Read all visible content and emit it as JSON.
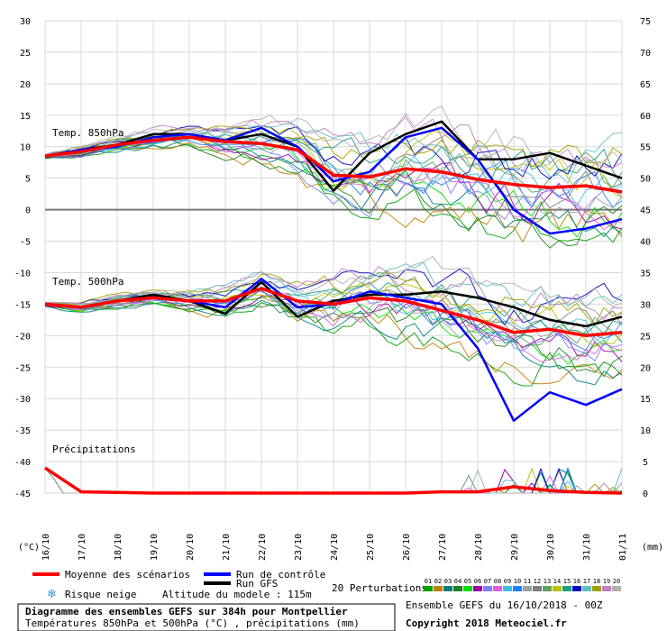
{
  "chart_data": {
    "type": "line",
    "title": "Diagramme des ensembles GEFS sur 384h pour Montpellier",
    "subtitle": "Températures 850hPa et 500hPa (°C) , précipitations (mm)",
    "left_axis_label": "(°C)",
    "right_axis_label": "(mm)",
    "left_ticks": [
      30,
      25,
      20,
      15,
      10,
      5,
      0,
      -5,
      -10,
      -15,
      -20,
      -25,
      -30,
      -35,
      -40,
      -45
    ],
    "right_ticks": [
      75,
      70,
      65,
      60,
      55,
      50,
      45,
      40,
      35,
      30,
      25,
      20,
      15,
      10,
      5,
      0
    ],
    "ylim": [
      -45,
      30
    ],
    "x_dates": [
      "16/10",
      "17/10",
      "18/10",
      "19/10",
      "20/10",
      "21/10",
      "22/10",
      "23/10",
      "24/10",
      "25/10",
      "26/10",
      "27/10",
      "28/10",
      "29/10",
      "30/10",
      "31/10",
      "01/11"
    ],
    "panel_labels": {
      "t850": "Temp. 850hPa",
      "t500": "Temp. 500hPa",
      "precip": "Précipitations"
    },
    "series": [
      {
        "key": "t850_mean",
        "name": "Moyenne des scénarios",
        "color": "#ff0000",
        "values": [
          8.5,
          9.2,
          10.3,
          11.0,
          11.5,
          10.8,
          10.5,
          9.5,
          5.5,
          5.2,
          6.5,
          6.0,
          4.8,
          4.0,
          3.5,
          3.8,
          2.8
        ]
      },
      {
        "key": "t850_control",
        "name": "Run de contrôle",
        "color": "#0000ff",
        "values": [
          8.5,
          9.5,
          10.0,
          11.5,
          12.0,
          11.0,
          13.0,
          10.0,
          4.5,
          6.0,
          11.5,
          13.0,
          8.0,
          0.0,
          -3.8,
          -3.0,
          -1.5
        ]
      },
      {
        "key": "t850_gfs",
        "name": "Run GFS",
        "color": "#000000",
        "values": [
          8.5,
          9.5,
          10.3,
          12.0,
          12.0,
          11.0,
          12.0,
          10.0,
          3.0,
          9.0,
          12.0,
          14.0,
          8.0,
          8.0,
          9.0,
          7.0,
          5.0
        ]
      },
      {
        "key": "t500_mean",
        "name": "Moyenne des scénarios",
        "color": "#ff0000",
        "values": [
          -15,
          -15.5,
          -14.5,
          -14.0,
          -14.5,
          -14.5,
          -12.5,
          -14.5,
          -15.0,
          -14.0,
          -14.5,
          -16.0,
          -17.5,
          -19.5,
          -19.0,
          -20.0,
          -19.5
        ]
      },
      {
        "key": "t500_control",
        "name": "Run de contrôle",
        "color": "#0000ff",
        "values": [
          -15,
          -15.5,
          -14.5,
          -14.0,
          -14.5,
          -15.5,
          -11.0,
          -15.5,
          -15.0,
          -13.0,
          -14.0,
          -15.0,
          -22.0,
          -33.5,
          -29.0,
          -31.0,
          -28.5
        ]
      },
      {
        "key": "t500_gfs",
        "name": "Run GFS",
        "color": "#000000",
        "values": [
          -15,
          -15.5,
          -14.5,
          -13.5,
          -14.5,
          -16.5,
          -11.5,
          -17.0,
          -14.5,
          -13.5,
          -13.5,
          -13.0,
          -14.0,
          -15.5,
          -17.5,
          -18.5,
          -17.0
        ]
      },
      {
        "key": "precip_mean",
        "name": "Moyenne des scénarios",
        "color": "#ff0000",
        "values": [
          4,
          0.2,
          0.1,
          0,
          0,
          0,
          0,
          0,
          0,
          0,
          0,
          0.2,
          0.2,
          1.0,
          0.4,
          0.1,
          0
        ]
      }
    ],
    "legend": {
      "mean": "Moyenne des scénarios",
      "control": "Run de contrôle",
      "gfs": "Run GFS",
      "snow": "Risque neige",
      "altitude": "Altitude du modele : 115m",
      "perturbations": "20 Perturbations",
      "perturbation_numbers": [
        "01",
        "02",
        "03",
        "04",
        "05",
        "06",
        "07",
        "08",
        "09",
        "10",
        "11",
        "12",
        "13",
        "14",
        "15",
        "16",
        "17",
        "18",
        "19",
        "20"
      ],
      "perturbation_colors": [
        "#00a000",
        "#c08000",
        "#008080",
        "#208020",
        "#00e000",
        "#a000a0",
        "#8080ff",
        "#e060e0",
        "#40c0e0",
        "#2080ff",
        "#a0a0a0",
        "#808080",
        "#60a060",
        "#c0c000",
        "#20a080",
        "#0000c0",
        "#60c0c0",
        "#a0a000",
        "#c080c0",
        "#b0b0b0"
      ]
    },
    "run_info": "Ensemble GEFS du 16/10/2018 - 00Z",
    "copyright": "Copyright 2018 Meteociel.fr"
  }
}
